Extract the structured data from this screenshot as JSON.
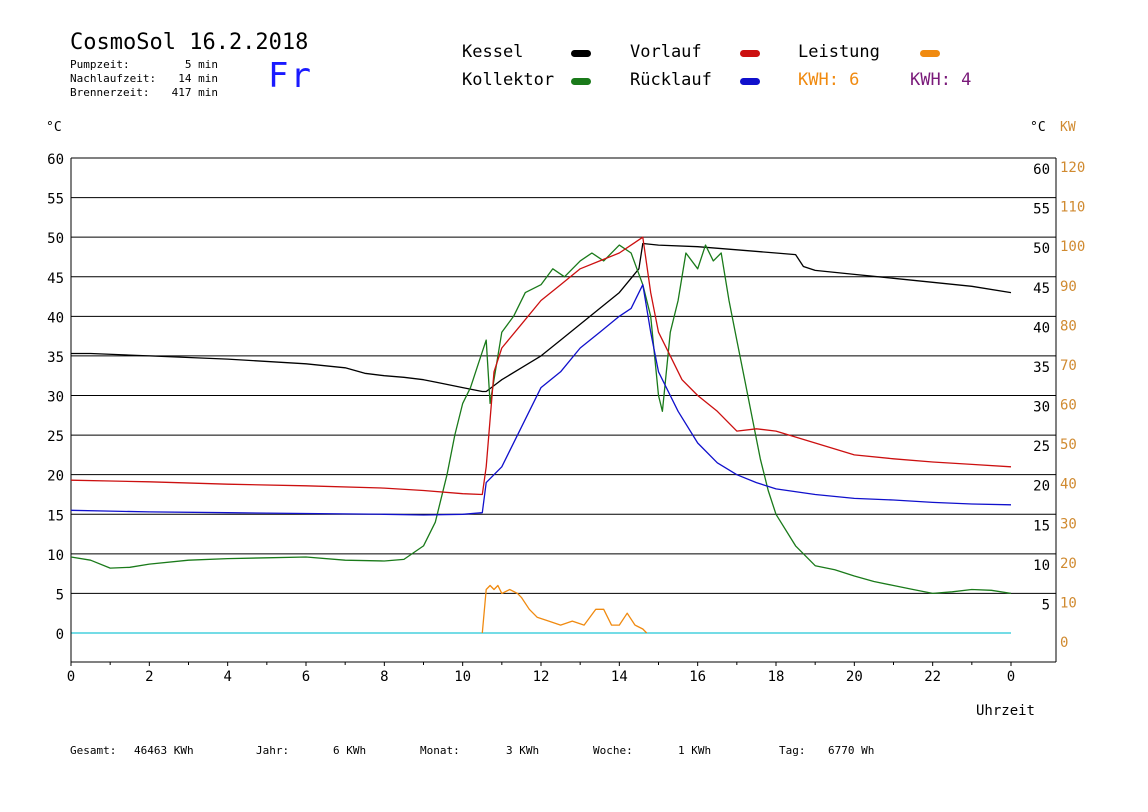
{
  "header": {
    "title": "CosmoSol 16.2.2018",
    "pumpzeit_label": "Pumpzeit:",
    "pumpzeit_value": "5 min",
    "nachlaufzeit_label": "Nachlaufzeit:",
    "nachlaufzeit_value": "14 min",
    "brennerzeit_label": "Brennerzeit:",
    "brennerzeit_value": "417 min",
    "weekday": "Fr"
  },
  "legend": {
    "kessel": "Kessel",
    "kollektor": "Kollektor",
    "vorlauf": "Vorlauf",
    "ruecklauf": "Rücklauf",
    "leistung": "Leistung",
    "kwh_orange": "KWH: 6",
    "kwh_purple": "KWH: 4"
  },
  "colors": {
    "kessel": "#000000",
    "kollektor": "#1a7a1a",
    "vorlauf": "#cc1010",
    "ruecklauf": "#1010cc",
    "leistung": "#f08a10",
    "kwh_purple": "#7a1a7a",
    "pump": "#22c8d8",
    "axis_right": "#d08a30"
  },
  "footer": {
    "gesamt_label": "Gesamt:",
    "gesamt_value": "46463 KWh",
    "jahr_label": "Jahr:",
    "jahr_value": "6 KWh",
    "monat_label": "Monat:",
    "monat_value": "3 KWh",
    "woche_label": "Woche:",
    "woche_value": "1 KWh",
    "tag_label": "Tag:",
    "tag_value": "6770 Wh"
  },
  "chart_data": {
    "type": "line",
    "xlabel": "Uhrzeit",
    "ylabel_left": "°C",
    "ylabel_right_c": "°C",
    "ylabel_right_kw": "KW",
    "xlim": [
      0,
      24
    ],
    "ylim": [
      0,
      60
    ],
    "ylim_kw": [
      0,
      120
    ],
    "x_ticks": [
      "0",
      "2",
      "4",
      "6",
      "8",
      "10",
      "12",
      "14",
      "16",
      "18",
      "20",
      "22",
      "0"
    ],
    "y_ticks": [
      0,
      5,
      10,
      15,
      20,
      25,
      30,
      35,
      40,
      45,
      50,
      55,
      60
    ],
    "y_ticks_kw": [
      0,
      10,
      20,
      30,
      40,
      50,
      60,
      70,
      80,
      90,
      100,
      110,
      120
    ],
    "grid": true,
    "series": [
      {
        "name": "Kessel",
        "color_key": "kessel",
        "x": [
          0,
          0.5,
          2,
          4,
          6,
          7,
          7.5,
          8,
          8.5,
          9,
          9.5,
          10,
          10.5,
          10.6,
          11,
          11.5,
          12,
          12.5,
          13,
          13.5,
          14,
          14.5,
          14.6,
          15,
          16,
          17,
          18,
          18.5,
          18.7,
          19,
          20,
          21,
          22,
          23,
          24
        ],
        "y": [
          35.3,
          35.3,
          35,
          34.6,
          34,
          33.5,
          32.8,
          32.5,
          32.3,
          32,
          31.5,
          31,
          30.5,
          30.5,
          32,
          33.5,
          35,
          37,
          39,
          41,
          43,
          46,
          49.2,
          49,
          48.8,
          48.4,
          48,
          47.8,
          46.3,
          45.8,
          45.3,
          44.8,
          44.3,
          43.8,
          43
        ]
      },
      {
        "name": "Kollektor",
        "color_key": "kollektor",
        "x": [
          0,
          0.5,
          1,
          1.5,
          2,
          3,
          4,
          5,
          6,
          7,
          8,
          8.5,
          9,
          9.3,
          9.6,
          9.8,
          10,
          10.2,
          10.4,
          10.6,
          10.7,
          11,
          11.3,
          11.6,
          12,
          12.3,
          12.6,
          13,
          13.3,
          13.6,
          14,
          14.3,
          14.6,
          14.8,
          15,
          15.1,
          15.3,
          15.5,
          15.7,
          16,
          16.2,
          16.4,
          16.6,
          16.8,
          17,
          17.2,
          17.4,
          17.6,
          17.8,
          18,
          18.5,
          19,
          19.5,
          20,
          20.5,
          21,
          21.5,
          22,
          22.5,
          23,
          23.5,
          24
        ],
        "y": [
          9.6,
          9.2,
          8.2,
          8.3,
          8.7,
          9.2,
          9.4,
          9.5,
          9.6,
          9.2,
          9.1,
          9.3,
          11,
          14,
          20,
          25,
          29,
          31,
          34,
          37,
          29,
          38,
          40,
          43,
          44,
          46,
          45,
          47,
          48,
          47,
          49,
          48,
          44,
          40,
          30,
          28,
          38,
          42,
          48,
          46,
          49,
          47,
          48,
          42,
          37,
          32,
          27,
          22,
          18,
          15,
          11,
          8.5,
          8,
          7.2,
          6.5,
          6,
          5.5,
          5,
          5.2,
          5.5,
          5.4,
          5
        ]
      },
      {
        "name": "Vorlauf",
        "color_key": "vorlauf",
        "x": [
          0,
          1,
          2,
          4,
          6,
          8,
          9,
          10,
          10.5,
          10.6,
          10.8,
          11,
          11.5,
          12,
          12.5,
          13,
          13.5,
          14,
          14.3,
          14.6,
          14.8,
          15,
          15.3,
          15.6,
          16,
          16.5,
          17,
          17.5,
          18,
          19,
          20,
          21,
          22,
          23,
          24
        ],
        "y": [
          19.3,
          19.2,
          19.1,
          18.8,
          18.6,
          18.3,
          18,
          17.6,
          17.5,
          21,
          33,
          36,
          39,
          42,
          44,
          46,
          47,
          48,
          49,
          50,
          43,
          38,
          35,
          32,
          30,
          28,
          25.5,
          25.8,
          25.5,
          24,
          22.5,
          22,
          21.6,
          21.3,
          21
        ]
      },
      {
        "name": "Rücklauf",
        "color_key": "ruecklauf",
        "x": [
          0,
          1,
          2,
          4,
          6,
          8,
          9,
          10,
          10.5,
          10.6,
          10.8,
          11,
          11.5,
          12,
          12.5,
          13,
          13.5,
          14,
          14.3,
          14.6,
          14.8,
          15,
          15.5,
          16,
          16.5,
          17,
          17.5,
          18,
          19,
          20,
          21,
          22,
          23,
          24
        ],
        "y": [
          15.5,
          15.4,
          15.3,
          15.2,
          15.1,
          15,
          14.9,
          15,
          15.2,
          19,
          20,
          21,
          26,
          31,
          33,
          36,
          38,
          40,
          41,
          44,
          38,
          33,
          28,
          24,
          21.5,
          20,
          19,
          18.2,
          17.5,
          17,
          16.8,
          16.5,
          16.3,
          16.2
        ]
      },
      {
        "name": "Leistung",
        "color_key": "leistung",
        "unit": "KW",
        "x": [
          10.5,
          10.6,
          10.7,
          10.8,
          10.9,
          11.0,
          11.2,
          11.4,
          11.5,
          11.7,
          11.9,
          12.2,
          12.5,
          12.8,
          13.1,
          13.4,
          13.6,
          13.8,
          14.0,
          14.2,
          14.4,
          14.6,
          14.7
        ],
        "y": [
          0,
          11,
          12,
          11,
          12,
          10,
          11,
          10,
          9,
          6,
          4,
          3,
          2,
          3,
          2,
          6,
          6,
          2,
          2,
          5,
          2,
          1,
          0
        ]
      }
    ]
  }
}
